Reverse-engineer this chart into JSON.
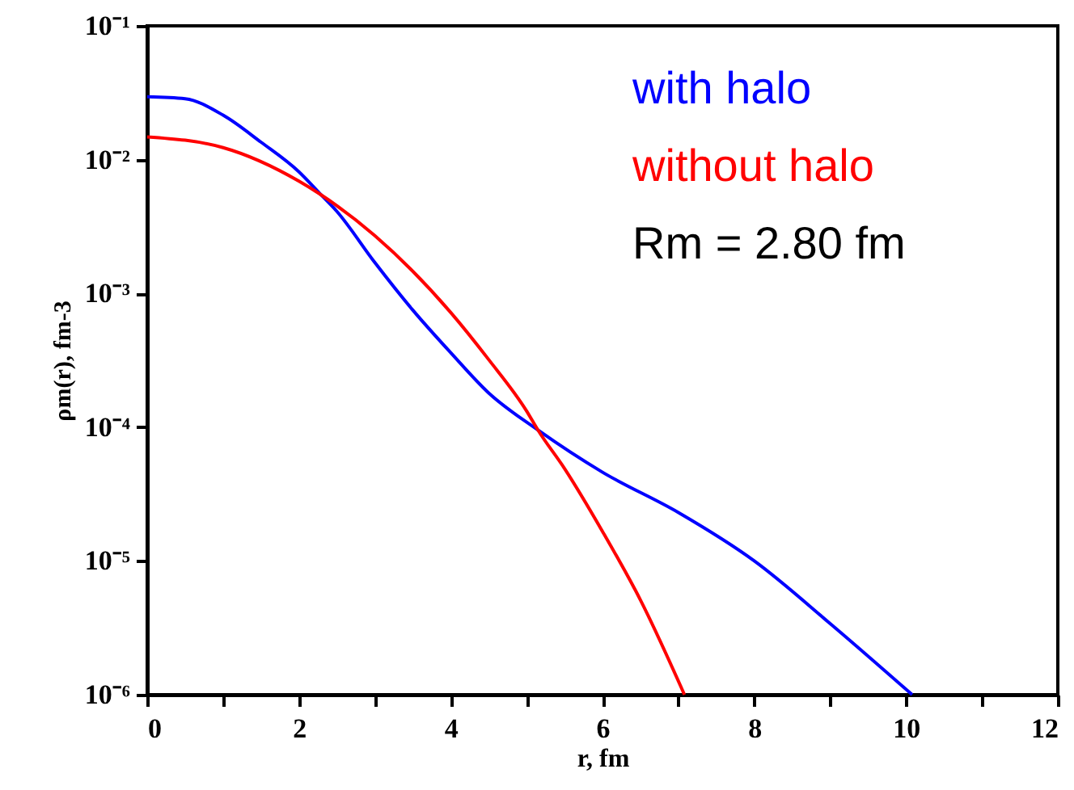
{
  "chart_data": {
    "type": "line",
    "xlabel": "r, fm",
    "ylabel": "ρm(r), fm-3",
    "log": "y",
    "grid": false,
    "legend": "top right",
    "line_style": "solid",
    "marker": "none",
    "xlim": [
      0,
      12
    ],
    "xticks": [
      0,
      {
        "value": 1,
        "label": null
      },
      2,
      {
        "value": 3,
        "label": null
      },
      4,
      {
        "value": 5,
        "label": null
      },
      6,
      {
        "value": 7,
        "label": null
      },
      8,
      {
        "value": 9,
        "label": null
      },
      10,
      {
        "value": 11,
        "label": null
      },
      12
    ],
    "ylim": [
      1e-06,
      0.1
    ],
    "yticks": [
      {
        "value": 1e-06,
        "label": "10⁻⁶"
      },
      {
        "value": 1e-05,
        "label": "10⁻⁵"
      },
      {
        "value": 0.0001,
        "label": "10⁻⁴"
      },
      {
        "value": 0.001,
        "label": "10⁻³"
      },
      {
        "value": 0.01,
        "label": "10⁻²"
      },
      {
        "value": 0.1,
        "label": "10⁻¹"
      }
    ],
    "annotations": [
      "Rm = 2.80 fm"
    ],
    "series": [
      {
        "name": "with halo",
        "color": "#0000ff",
        "x": [
          0,
          0.5,
          1,
          1.5,
          2,
          2.26,
          2.5,
          3,
          3.5,
          4,
          4.5,
          5.15,
          6,
          7,
          8,
          9,
          10.08
        ],
        "values": [
          0.0295,
          0.0285,
          0.0215,
          0.0135,
          0.0081,
          0.0057,
          0.0041,
          0.0017,
          0.00075,
          0.00036,
          0.00018,
          9.5e-05,
          4.6e-05,
          2.3e-05,
          1e-05,
          3.4e-06,
          1e-06
        ]
      },
      {
        "name": "without halo",
        "color": "#ff0000",
        "x": [
          0,
          1,
          2,
          2.26,
          3,
          4,
          4.5,
          5,
          5.15,
          5.5,
          6,
          6.5,
          7.08
        ],
        "values": [
          0.0148,
          0.0123,
          0.0069,
          0.0056,
          0.0027,
          0.00072,
          0.00032,
          0.000132,
          9.5e-05,
          4.9e-05,
          1.66e-05,
          5.1e-06,
          1e-06
        ]
      }
    ]
  }
}
